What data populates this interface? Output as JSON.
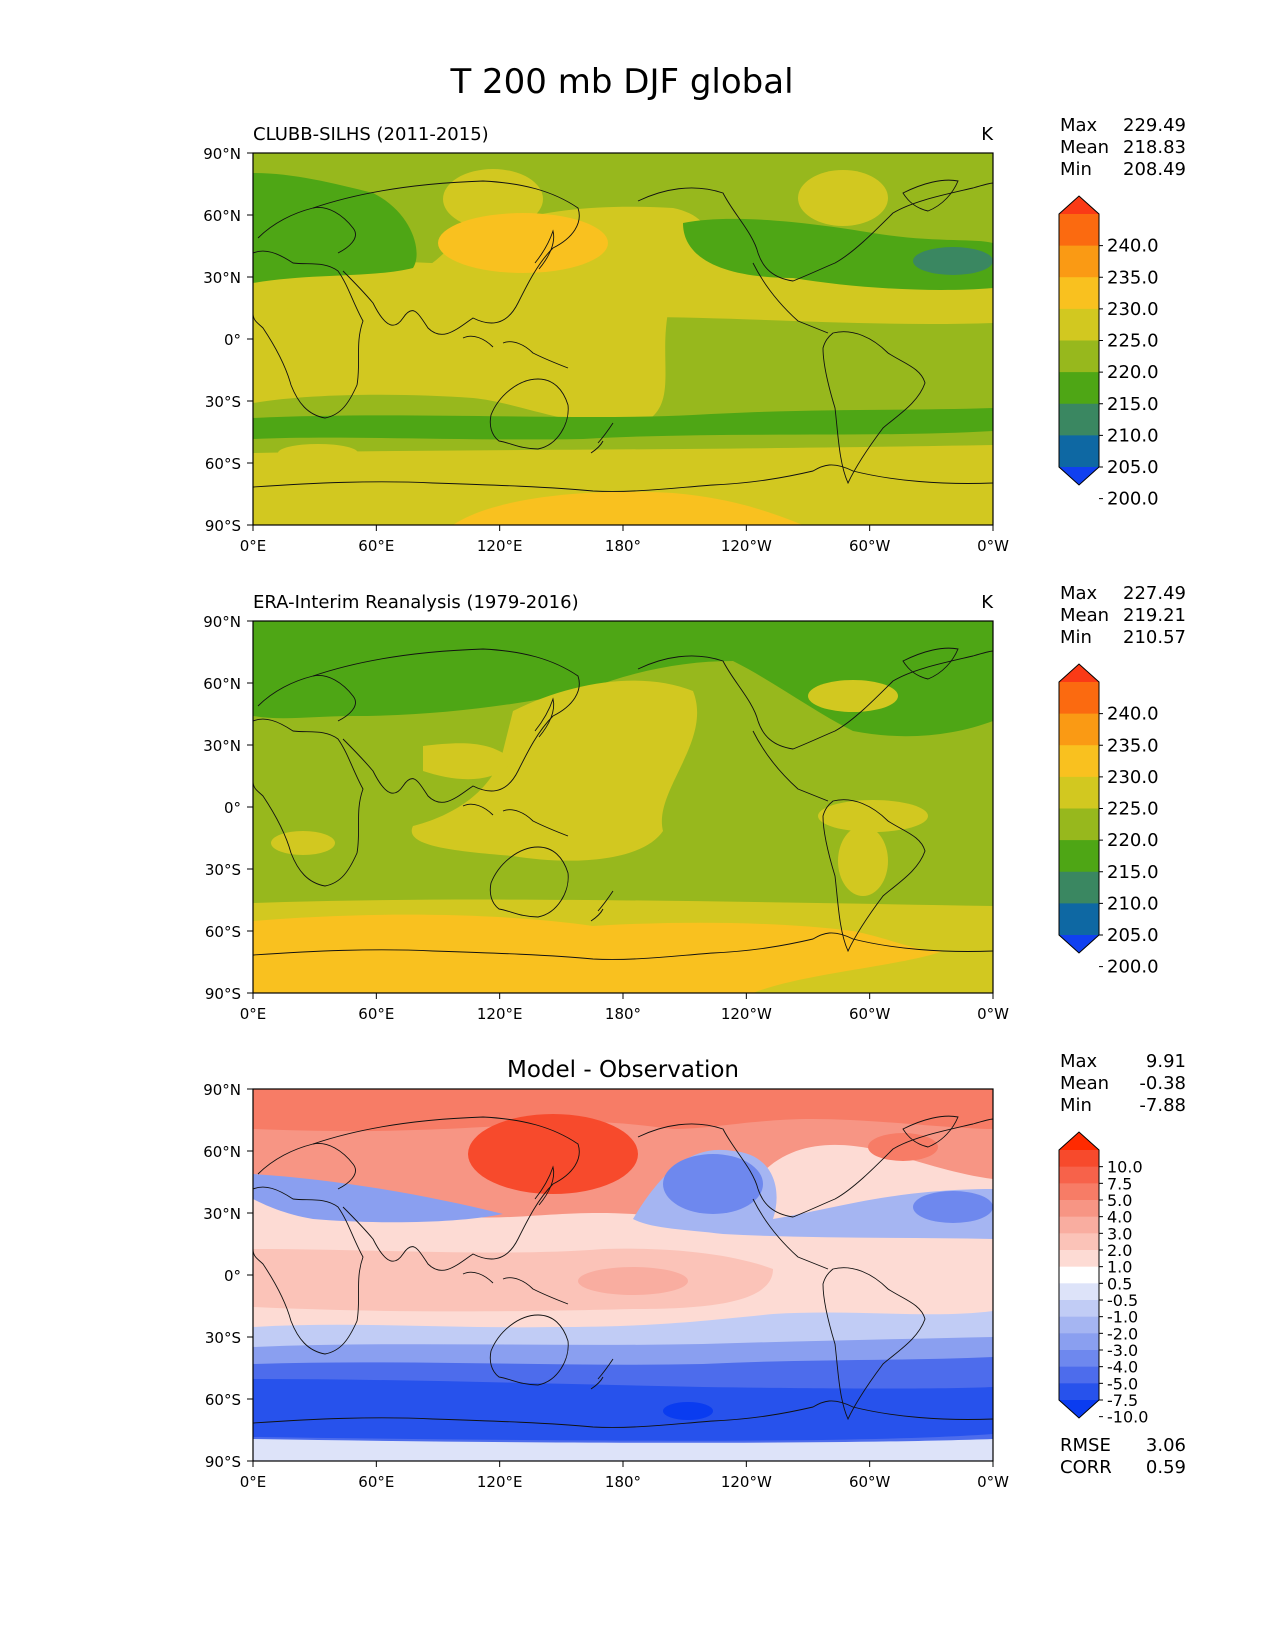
{
  "title": "T 200 mb DJF global",
  "lat_labels": [
    "90°N",
    "60°N",
    "30°N",
    "0°",
    "30°S",
    "60°S",
    "90°S"
  ],
  "lon_labels": [
    "0°E",
    "60°E",
    "120°E",
    "180°",
    "120°W",
    "60°W",
    "0°W"
  ],
  "stat_labels": {
    "max": "Max",
    "mean": "Mean",
    "min": "Min",
    "rmse": "RMSE",
    "corr": "CORR"
  },
  "panels": [
    {
      "left_title": "CLUBB-SILHS (2011-2015)",
      "center_title": "",
      "units": "K",
      "stats": {
        "max": "229.49",
        "mean": "218.83",
        "min": "208.49"
      }
    },
    {
      "left_title": "ERA-Interim Reanalysis (1979-2016)",
      "center_title": "",
      "units": "K",
      "stats": {
        "max": "227.49",
        "mean": "219.21",
        "min": "210.57"
      }
    },
    {
      "left_title": "",
      "center_title": "Model - Observation",
      "units": "",
      "stats": {
        "max": "9.91",
        "mean": "-0.38",
        "min": "-7.88"
      },
      "rmse": "3.06",
      "corr": "0.59"
    }
  ],
  "colorbars": {
    "field": {
      "labels": [
        "240.0",
        "235.0",
        "230.0",
        "225.0",
        "220.0",
        "215.0",
        "210.0",
        "205.0",
        "200.0"
      ],
      "colors": [
        "#fa3a16",
        "#fb6a10",
        "#fa9a14",
        "#f9c11f",
        "#d2c820",
        "#97b81d",
        "#4ea615",
        "#3a8761",
        "#0e68a3",
        "#1040f0"
      ]
    },
    "diff": {
      "labels": [
        "10.0",
        "7.5",
        "5.0",
        "4.0",
        "3.0",
        "2.0",
        "1.0",
        "0.5",
        "-0.5",
        "-1.0",
        "-2.0",
        "-3.0",
        "-4.0",
        "-5.0",
        "-7.5",
        "-10.0"
      ],
      "colors": [
        "#ff2a00",
        "#f74a2c",
        "#f7624a",
        "#f77c66",
        "#f79584",
        "#f9ada0",
        "#fbc3b8",
        "#fddbd4",
        "#ffffff",
        "#dde3f9",
        "#c1ccf5",
        "#a5b5f2",
        "#8a9ff0",
        "#6e88ee",
        "#4d6cec",
        "#2752ec",
        "#0a3cf0"
      ]
    }
  }
}
